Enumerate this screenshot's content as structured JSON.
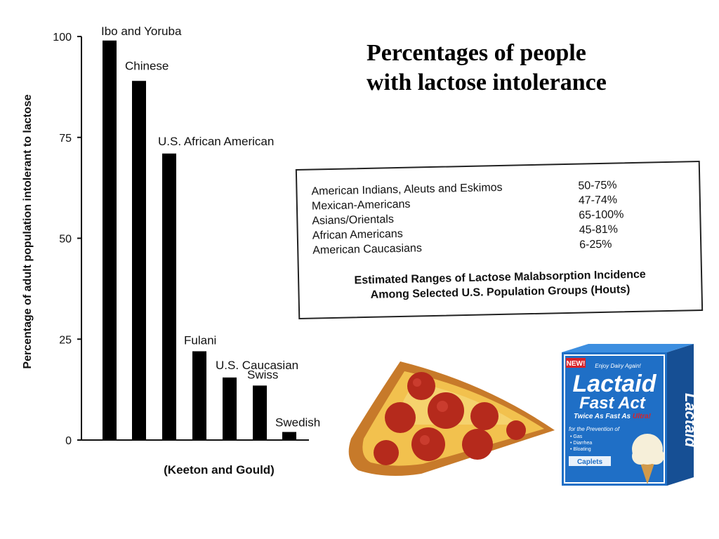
{
  "slide_title_lines": [
    "Percentages of people",
    "with lactose intolerance"
  ],
  "chart_data": {
    "type": "bar",
    "ylabel": "Percentage of adult population intolerant to lactose",
    "xlabel": "",
    "ylim": [
      0,
      100
    ],
    "yticks": [
      0,
      25,
      50,
      75,
      100
    ],
    "categories": [
      "Ibo and Yoruba",
      "Chinese",
      "U.S. African American",
      "Fulani",
      "U.S. Caucasian",
      "Swiss",
      "Swedish"
    ],
    "values": [
      99,
      89,
      71,
      22,
      15.5,
      13.5,
      2
    ],
    "bar_color": "#000000",
    "grid": false,
    "source_note": "(Keeton and Gould)"
  },
  "ranges_table": {
    "rows": [
      {
        "group": "American Indians, Aleuts and Eskimos",
        "range": "50-75%"
      },
      {
        "group": "Mexican-Americans",
        "range": "47-74%"
      },
      {
        "group": "Asians/Orientals",
        "range": "65-100%"
      },
      {
        "group": "African Americans",
        "range": "45-81%"
      },
      {
        "group": "American Caucasians",
        "range": "6-25%"
      }
    ],
    "caption_lines": [
      "Estimated Ranges of Lactose Malabsorption Incidence",
      "Among Selected U.S. Population Groups (Houts)"
    ]
  },
  "product_box": {
    "badge": "NEW!",
    "tagline": "Enjoy Dairy Again!",
    "brand": "Lactaid",
    "product": "Fast Act",
    "claim_prefix": "Twice As Fast As ",
    "claim_highlight": "Ultra!",
    "side_text": "Lactaid",
    "prevention_heading": "for the Prevention of",
    "prevention_items": [
      "• Gas",
      "• Diarrhea",
      "• Bloating"
    ],
    "form": "Caplets",
    "colors": {
      "box_blue": "#1f6fc6",
      "accent_red": "#d8232a",
      "text_white": "#ffffff"
    }
  },
  "icons": {
    "pizza": "pepperoni-pizza-slice",
    "product": "lactaid-box"
  }
}
